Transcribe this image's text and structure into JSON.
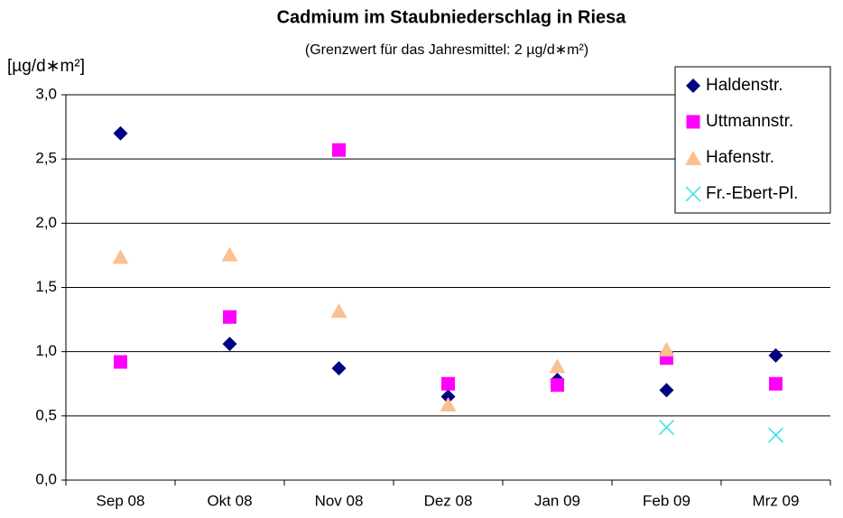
{
  "chart_data": {
    "type": "scatter",
    "title": "Cadmium im Staubniederschlag in Riesa",
    "subtitle": "(Grenzwert für das Jahresmittel: 2 µg/d∗m²)",
    "y_label": "[µg/d∗m²]",
    "categories": [
      "Sep 08",
      "Okt 08",
      "Nov 08",
      "Dez 08",
      "Jan 09",
      "Feb 09",
      "Mrz 09"
    ],
    "series": [
      {
        "name": "Haldenstr.",
        "color": "#000080",
        "marker": "diamond",
        "values": [
          2.7,
          1.06,
          0.87,
          0.65,
          0.78,
          0.7,
          0.97
        ]
      },
      {
        "name": "Uttmannstr.",
        "color": "#ff00ff",
        "marker": "square",
        "values": [
          0.92,
          1.27,
          2.57,
          0.75,
          0.74,
          0.95,
          0.75
        ]
      },
      {
        "name": "Hafenstr.",
        "color": "#fac090",
        "marker": "triangle",
        "values": [
          1.74,
          1.76,
          1.32,
          0.59,
          0.89,
          1.02,
          null
        ]
      },
      {
        "name": "Fr.-Ebert-Pl.",
        "color": "#33e0e8",
        "marker": "cross",
        "values": [
          null,
          null,
          null,
          null,
          null,
          0.41,
          0.35
        ]
      }
    ],
    "ylim": [
      0,
      3
    ],
    "yticks": [
      {
        "value": 0,
        "label": "0,0"
      },
      {
        "value": 0.5,
        "label": "0,5"
      },
      {
        "value": 1,
        "label": "1,0"
      },
      {
        "value": 1.5,
        "label": "1,5"
      },
      {
        "value": 2,
        "label": "2,0"
      },
      {
        "value": 2.5,
        "label": "2,5"
      },
      {
        "value": 3,
        "label": "3,0"
      }
    ],
    "grid": true,
    "legend": "top-right"
  }
}
